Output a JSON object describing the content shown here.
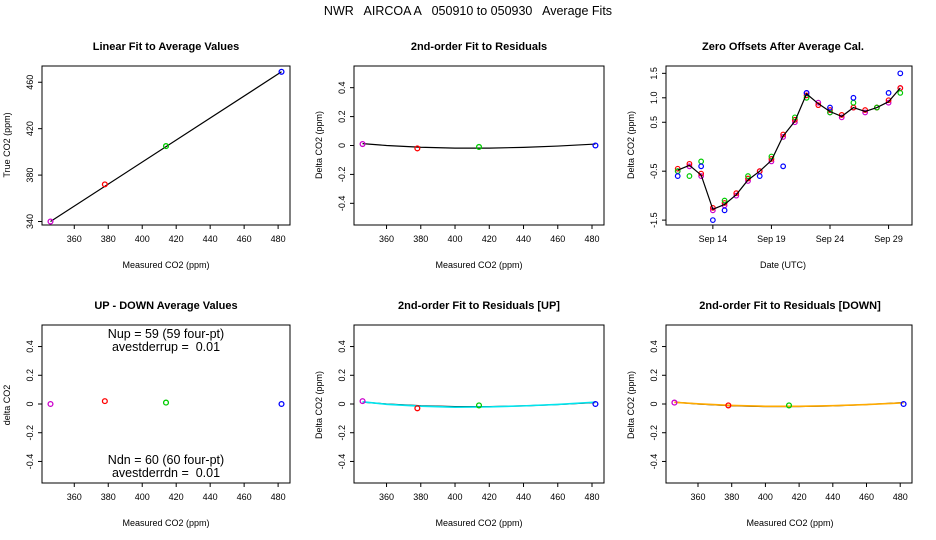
{
  "figure": {
    "suptitle": "NWR   AIRCOA A   050910 to 050930   Average Fits",
    "colors": {
      "purple": "#cc00cc",
      "red": "#ff0000",
      "green": "#00cc00",
      "blue": "#0000ff",
      "black": "#000000",
      "cyan": "#00e5ee",
      "orange": "#ffaa00"
    }
  },
  "chart_data": [
    {
      "id": "p1",
      "type": "scatter",
      "title": "Linear Fit to Average Values",
      "xlabel": "Measured CO2 (ppm)",
      "ylabel": "True CO2 (ppm)",
      "xlim": [
        341,
        487
      ],
      "ylim": [
        337,
        474
      ],
      "xticks": [
        360,
        380,
        400,
        420,
        440,
        460,
        480
      ],
      "yticks": [
        340,
        380,
        420,
        460
      ],
      "points": [
        {
          "x": 346,
          "y": 340,
          "color": "purple"
        },
        {
          "x": 378,
          "y": 372,
          "color": "red"
        },
        {
          "x": 414,
          "y": 405,
          "color": "green"
        },
        {
          "x": 482,
          "y": 469,
          "color": "blue"
        }
      ],
      "lines": [
        {
          "name": "fit",
          "color": "black",
          "x": [
            346,
            482
          ],
          "y": [
            340,
            469
          ]
        }
      ]
    },
    {
      "id": "p2",
      "type": "scatter",
      "title": "2nd-order Fit to Residuals",
      "xlabel": "Measured CO2 (ppm)",
      "ylabel": "Delta CO2 (ppm)",
      "xlim": [
        341,
        487
      ],
      "ylim": [
        -0.55,
        0.55
      ],
      "xticks": [
        360,
        380,
        400,
        420,
        440,
        460,
        480
      ],
      "yticks": [
        -0.4,
        -0.2,
        0.0,
        0.2,
        0.4
      ],
      "points": [
        {
          "x": 346,
          "y": 0.01,
          "color": "purple"
        },
        {
          "x": 378,
          "y": -0.02,
          "color": "red"
        },
        {
          "x": 414,
          "y": -0.01,
          "color": "green"
        },
        {
          "x": 482,
          "y": 0.0,
          "color": "blue"
        }
      ],
      "lines": [
        {
          "name": "fit",
          "color": "black",
          "x": [
            346,
            360,
            380,
            400,
            420,
            440,
            460,
            482
          ],
          "y": [
            0.013,
            0.0,
            -0.012,
            -0.018,
            -0.018,
            -0.013,
            -0.004,
            0.01
          ]
        }
      ]
    },
    {
      "id": "p3",
      "type": "scatter",
      "title": "Zero Offsets After Average Cal.",
      "xlabel": "Date (UTC)",
      "ylabel": "Delta CO2 (ppm)",
      "xlim": [
        "2005-09-10",
        "2005-10-01"
      ],
      "ylim": [
        -1.6,
        1.65
      ],
      "xticks": [
        "Sep 14",
        "Sep 19",
        "Sep 24",
        "Sep 29"
      ],
      "xtick_dates": [
        "2005-09-14",
        "2005-09-19",
        "2005-09-24",
        "2005-09-29"
      ],
      "yticks": [
        -1.5,
        -0.5,
        0.5,
        1.0,
        1.5
      ],
      "ytick_labels": [
        "-1.5",
        "-0.5",
        "0.5",
        "1.0",
        "1.5"
      ],
      "series": [
        {
          "name": "",
          "color": "purple",
          "dates": [
            "2005-09-11",
            "2005-09-12",
            "2005-09-13",
            "2005-09-14",
            "2005-09-15",
            "2005-09-16",
            "2005-09-17",
            "2005-09-18",
            "2005-09-19",
            "2005-09-20",
            "2005-09-21",
            "2005-09-22",
            "2005-09-23",
            "2005-09-24",
            "2005-09-25",
            "2005-09-26",
            "2005-09-27",
            "2005-09-28",
            "2005-09-29",
            "2005-09-30"
          ],
          "values": [
            -0.5,
            -0.4,
            -0.6,
            -1.3,
            -1.2,
            -1.0,
            -0.7,
            -0.5,
            -0.3,
            0.2,
            0.5,
            1.1,
            0.9,
            0.7,
            0.6,
            0.8,
            0.7,
            0.8,
            0.9,
            1.2
          ]
        },
        {
          "name": "",
          "color": "red",
          "dates": [
            "2005-09-11",
            "2005-09-12",
            "2005-09-13",
            "2005-09-14",
            "2005-09-15",
            "2005-09-16",
            "2005-09-17",
            "2005-09-18",
            "2005-09-19",
            "2005-09-20",
            "2005-09-21",
            "2005-09-22",
            "2005-09-23",
            "2005-09-24",
            "2005-09-25",
            "2005-09-26",
            "2005-09-27",
            "2005-09-28",
            "2005-09-29",
            "2005-09-30"
          ],
          "values": [
            -0.45,
            -0.35,
            -0.55,
            -1.25,
            -1.15,
            -0.95,
            -0.65,
            -0.5,
            -0.25,
            0.25,
            0.55,
            1.05,
            0.85,
            0.75,
            0.65,
            0.8,
            0.75,
            0.8,
            0.95,
            1.2
          ]
        },
        {
          "name": "",
          "color": "green",
          "dates": [
            "2005-09-11",
            "2005-09-12",
            "2005-09-13",
            "2005-09-15",
            "2005-09-17",
            "2005-09-19",
            "2005-09-21",
            "2005-09-22",
            "2005-09-24",
            "2005-09-26",
            "2005-09-28",
            "2005-09-30"
          ],
          "values": [
            -0.5,
            -0.6,
            -0.3,
            -1.1,
            -0.6,
            -0.2,
            0.6,
            1.0,
            0.7,
            0.9,
            0.8,
            1.1
          ]
        },
        {
          "name": "",
          "color": "blue",
          "dates": [
            "2005-09-11",
            "2005-09-13",
            "2005-09-14",
            "2005-09-15",
            "2005-09-18",
            "2005-09-20",
            "2005-09-22",
            "2005-09-24",
            "2005-09-26",
            "2005-09-29",
            "2005-09-30"
          ],
          "values": [
            -0.6,
            -0.4,
            -1.5,
            -1.3,
            -0.6,
            -0.4,
            1.1,
            0.8,
            1.0,
            1.1,
            1.5
          ]
        },
        {
          "name": "",
          "color": "black",
          "dates": [
            "2005-09-11",
            "2005-09-12",
            "2005-09-13",
            "2005-09-14",
            "2005-09-15",
            "2005-09-16",
            "2005-09-17",
            "2005-09-18",
            "2005-09-19",
            "2005-09-20",
            "2005-09-21",
            "2005-09-22",
            "2005-09-23",
            "2005-09-24",
            "2005-09-25",
            "2005-09-26",
            "2005-09-27",
            "2005-09-28",
            "2005-09-29",
            "2005-09-30"
          ],
          "values": [
            -0.48,
            -0.38,
            -0.58,
            -1.28,
            -1.18,
            -0.98,
            -0.68,
            -0.5,
            -0.28,
            0.22,
            0.52,
            1.08,
            0.88,
            0.72,
            0.62,
            0.8,
            0.72,
            0.8,
            0.92,
            1.2
          ]
        }
      ]
    },
    {
      "id": "p4",
      "type": "scatter",
      "title": "UP - DOWN Average Values",
      "xlabel": "Measured CO2 (ppm)",
      "ylabel": "delta CO2",
      "xlim": [
        341,
        487
      ],
      "ylim": [
        -0.55,
        0.55
      ],
      "xticks": [
        360,
        380,
        400,
        420,
        440,
        460,
        480
      ],
      "yticks": [
        -0.4,
        -0.2,
        0.0,
        0.2,
        0.4
      ],
      "points": [
        {
          "x": 346,
          "y": 0.0,
          "color": "purple"
        },
        {
          "x": 378,
          "y": 0.02,
          "color": "red"
        },
        {
          "x": 414,
          "y": 0.01,
          "color": "green"
        },
        {
          "x": 482,
          "y": 0.0,
          "color": "blue"
        }
      ],
      "annotations": [
        {
          "text": "Nup = 59 (59 four-pt)"
        },
        {
          "text": "avestderrup =  0.01"
        },
        {
          "text": "Ndn = 60 (60 four-pt)"
        },
        {
          "text": "avestderrdn =  0.01"
        }
      ]
    },
    {
      "id": "p5",
      "type": "scatter",
      "title": "2nd-order Fit to Residuals [UP]",
      "xlabel": "Measured CO2 (ppm)",
      "ylabel": "Delta CO2 (ppm)",
      "xlim": [
        341,
        487
      ],
      "ylim": [
        -0.55,
        0.55
      ],
      "xticks": [
        360,
        380,
        400,
        420,
        440,
        460,
        480
      ],
      "yticks": [
        -0.4,
        -0.2,
        0.0,
        0.2,
        0.4
      ],
      "points": [
        {
          "x": 346,
          "y": 0.02,
          "color": "purple"
        },
        {
          "x": 378,
          "y": -0.03,
          "color": "red"
        },
        {
          "x": 414,
          "y": -0.01,
          "color": "green"
        },
        {
          "x": 482,
          "y": 0.0,
          "color": "blue"
        }
      ],
      "lines": [
        {
          "name": "",
          "color": "black",
          "x": [
            346,
            360,
            380,
            400,
            420,
            440,
            460,
            482
          ],
          "y": [
            0.013,
            0.0,
            -0.012,
            -0.018,
            -0.018,
            -0.013,
            -0.004,
            0.01
          ]
        },
        {
          "name": "",
          "color": "cyan",
          "x": [
            346,
            360,
            380,
            400,
            420,
            440,
            460,
            482
          ],
          "y": [
            0.015,
            -0.002,
            -0.015,
            -0.022,
            -0.02,
            -0.013,
            -0.003,
            0.013
          ]
        }
      ]
    },
    {
      "id": "p6",
      "type": "scatter",
      "title": "2nd-order Fit to Residuals [DOWN]",
      "xlabel": "Measured CO2 (ppm)",
      "ylabel": "Delta CO2 (ppm)",
      "xlim": [
        341,
        487
      ],
      "ylim": [
        -0.55,
        0.55
      ],
      "xticks": [
        360,
        380,
        400,
        420,
        440,
        460,
        480
      ],
      "yticks": [
        -0.4,
        -0.2,
        0.0,
        0.2,
        0.4
      ],
      "points": [
        {
          "x": 346,
          "y": 0.01,
          "color": "purple"
        },
        {
          "x": 378,
          "y": -0.01,
          "color": "red"
        },
        {
          "x": 414,
          "y": -0.01,
          "color": "green"
        },
        {
          "x": 482,
          "y": 0.0,
          "color": "blue"
        }
      ],
      "lines": [
        {
          "name": "",
          "color": "black",
          "x": [
            346,
            360,
            380,
            400,
            420,
            440,
            460,
            482
          ],
          "y": [
            0.013,
            0.0,
            -0.012,
            -0.018,
            -0.018,
            -0.013,
            -0.004,
            0.01
          ]
        },
        {
          "name": "",
          "color": "orange",
          "x": [
            346,
            360,
            380,
            400,
            420,
            440,
            460,
            482
          ],
          "y": [
            0.012,
            0.001,
            -0.01,
            -0.016,
            -0.016,
            -0.012,
            -0.004,
            0.008
          ]
        }
      ]
    }
  ]
}
